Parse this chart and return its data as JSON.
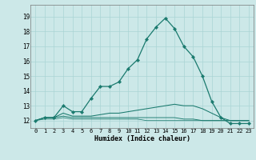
{
  "xlabel": "Humidex (Indice chaleur)",
  "bg_color": "#cce8e8",
  "grid_color": "#aad4d4",
  "line_color": "#1a7a6e",
  "xlim": [
    -0.5,
    23.5
  ],
  "ylim": [
    11.5,
    19.8
  ],
  "xticks": [
    0,
    1,
    2,
    3,
    4,
    5,
    6,
    7,
    8,
    9,
    10,
    11,
    12,
    13,
    14,
    15,
    16,
    17,
    18,
    19,
    20,
    21,
    22,
    23
  ],
  "yticks": [
    12,
    13,
    14,
    15,
    16,
    17,
    18,
    19
  ],
  "line1_x": [
    0,
    1,
    2,
    3,
    4,
    5,
    6,
    7,
    8,
    9,
    10,
    11,
    12,
    13,
    14,
    15,
    16,
    17,
    18,
    19,
    20,
    21,
    22,
    23
  ],
  "line1_y": [
    12.0,
    12.2,
    12.2,
    13.0,
    12.6,
    12.6,
    13.5,
    14.3,
    14.3,
    14.6,
    15.5,
    16.1,
    17.5,
    18.3,
    18.9,
    18.2,
    17.0,
    16.3,
    15.0,
    13.3,
    12.2,
    11.8,
    11.8,
    11.8
  ],
  "line2_x": [
    0,
    1,
    2,
    3,
    4,
    5,
    6,
    7,
    8,
    9,
    10,
    11,
    12,
    13,
    14,
    15,
    16,
    17,
    18,
    19,
    20,
    21,
    22,
    23
  ],
  "line2_y": [
    12.0,
    12.2,
    12.2,
    12.5,
    12.3,
    12.3,
    12.3,
    12.4,
    12.5,
    12.5,
    12.6,
    12.7,
    12.8,
    12.9,
    13.0,
    13.1,
    13.0,
    13.0,
    12.8,
    12.5,
    12.2,
    12.0,
    12.0,
    12.0
  ],
  "line3_x": [
    0,
    1,
    2,
    3,
    4,
    5,
    6,
    7,
    8,
    9,
    10,
    11,
    12,
    13,
    14,
    15,
    16,
    17,
    18,
    19,
    20,
    21,
    22,
    23
  ],
  "line3_y": [
    12.0,
    12.2,
    12.2,
    12.3,
    12.2,
    12.2,
    12.2,
    12.2,
    12.2,
    12.2,
    12.2,
    12.2,
    12.2,
    12.2,
    12.2,
    12.2,
    12.1,
    12.1,
    12.0,
    12.0,
    12.0,
    12.0,
    12.0,
    12.0
  ],
  "line4_x": [
    0,
    1,
    2,
    3,
    4,
    5,
    6,
    7,
    8,
    9,
    10,
    11,
    12,
    13,
    14,
    15,
    16,
    17,
    18,
    19,
    20,
    21,
    22,
    23
  ],
  "line4_y": [
    12.0,
    12.1,
    12.1,
    12.2,
    12.1,
    12.1,
    12.1,
    12.1,
    12.1,
    12.1,
    12.1,
    12.1,
    12.0,
    12.0,
    12.0,
    12.0,
    12.0,
    12.0,
    12.0,
    12.0,
    12.0,
    12.0,
    12.0,
    12.0
  ]
}
